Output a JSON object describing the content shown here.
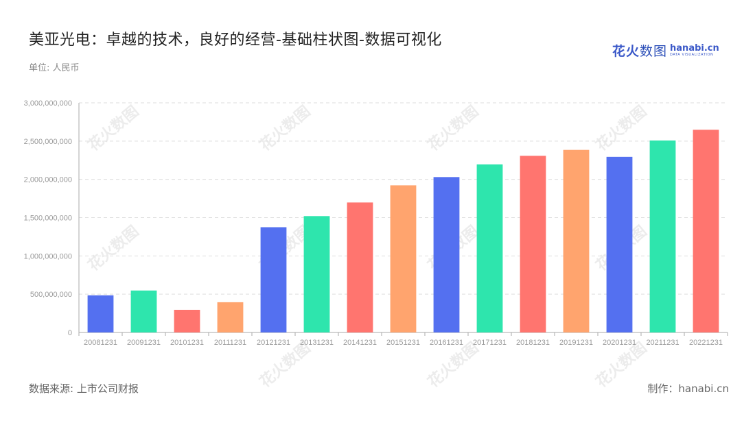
{
  "header": {
    "title": "美亚光电：卓越的技术，良好的经营-基础柱状图-数据可视化",
    "unit": "单位: 人民币"
  },
  "logo": {
    "cn_part1": "花火",
    "cn_part2": "数图",
    "en_name": "hanabi.cn",
    "en_sub": "DATA VISUALIZATION"
  },
  "footer": {
    "source": "数据来源: 上市公司财报",
    "credit": "制作：hanabi.cn"
  },
  "watermark": {
    "text": "花火数图"
  },
  "colors": {
    "palette": [
      "#5470f0",
      "#2ee5ad",
      "#ff756f",
      "#ffa46e"
    ],
    "grid": "#dddddd",
    "axis": "#aaaaaa",
    "tick_text": "#999999"
  },
  "chart_data": {
    "type": "bar",
    "categories": [
      "20081231",
      "20091231",
      "20101231",
      "20111231",
      "20121231",
      "20131231",
      "20141231",
      "20151231",
      "20161231",
      "20171231",
      "20181231",
      "20191231",
      "20201231",
      "20211231",
      "20221231"
    ],
    "values": [
      485000000,
      548000000,
      296000000,
      395000000,
      1375000000,
      1520000000,
      1698000000,
      1922000000,
      2030000000,
      2196000000,
      2308000000,
      2385000000,
      2294000000,
      2508000000,
      2648000000
    ],
    "yticks": [
      "0",
      "500,000,000",
      "1,000,000,000",
      "1,500,000,000",
      "2,000,000,000",
      "2,500,000,000",
      "3,000,000,000"
    ],
    "ylim": [
      0,
      3000000000
    ],
    "grid": true,
    "legend": "none"
  }
}
